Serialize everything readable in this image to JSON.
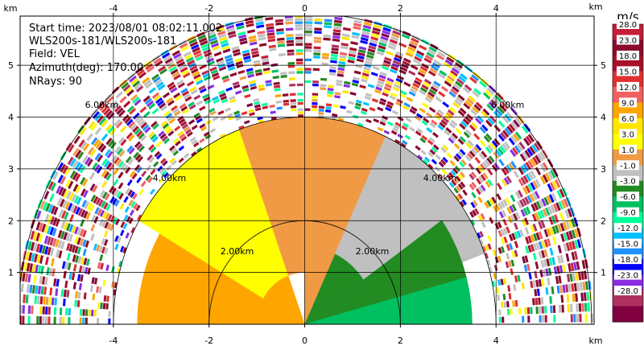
{
  "info": {
    "start_time": "Start time: 2023/08/01 08:02:11.002",
    "instrument": "WLS200s-181/WLS200s-181",
    "field": "Field: VEL",
    "azimuth": "Azimuth(deg): 170.00",
    "nrays": "NRays: 90"
  },
  "axis": {
    "unit": "km",
    "x_ticks": [
      -4,
      -2,
      0,
      2,
      4
    ],
    "y_ticks": [
      1,
      2,
      3,
      4,
      5
    ],
    "x_range": [
      -5.95,
      6.05
    ],
    "y_range": [
      0,
      5.95
    ]
  },
  "rings": [
    {
      "r": 2,
      "label": "2.00km"
    },
    {
      "r": 4,
      "label": "4.00km"
    },
    {
      "r": 6,
      "label": "6.00km"
    }
  ],
  "colorbar": {
    "unit": "m/s",
    "levels": [
      "28.0",
      "23.0",
      "18.0",
      "15.0",
      "12.0",
      "9.0",
      "6.0",
      "3.0",
      "1.0",
      "-1.0",
      "-3.0",
      "-6.0",
      "-9.0",
      "-12.0",
      "-15.0",
      "-18.0",
      "-23.0",
      "-28.0"
    ],
    "colors": [
      "#c41e3a",
      "#8b0a2a",
      "#a8102a",
      "#e03030",
      "#f06060",
      "#ffa500",
      "#ffe600",
      "#ffff00",
      "#f09a45",
      "#c0c0c0",
      "#228b22",
      "#00c060",
      "#00ff99",
      "#00bfff",
      "#1e90ff",
      "#0000ff",
      "#8a2be2",
      "#b03060",
      "#800040"
    ]
  },
  "chart_data": {
    "type": "heatmap",
    "title": "Start time: 2023/08/01 08:02:11.002",
    "xlabel": "km",
    "ylabel": "km",
    "field": "VEL",
    "units": "m/s",
    "xlim": [
      -5.95,
      6.05
    ],
    "ylim": [
      0,
      5.95
    ],
    "colorbar_range": [
      -28,
      28
    ],
    "approx_velocity_regions": [
      {
        "azimuth_deg": [
          270,
          300
        ],
        "range_km": [
          0,
          3.5
        ],
        "velocity_ms": 7
      },
      {
        "azimuth_deg": [
          300,
          340
        ],
        "range_km": [
          1,
          4.0
        ],
        "velocity_ms": 2
      },
      {
        "azimuth_deg": [
          340,
          360
        ],
        "range_km": [
          1,
          4.0
        ],
        "velocity_ms": 0
      },
      {
        "azimuth_deg": [
          0,
          25
        ],
        "range_km": [
          0,
          4.0
        ],
        "velocity_ms": 0
      },
      {
        "azimuth_deg": [
          25,
          70
        ],
        "range_km": [
          1.5,
          4.0
        ],
        "velocity_ms": -2
      },
      {
        "azimuth_deg": [
          55,
          75
        ],
        "range_km": [
          0,
          3.5
        ],
        "velocity_ms": -4
      },
      {
        "azimuth_deg": [
          75,
          90
        ],
        "range_km": [
          0,
          3.5
        ],
        "velocity_ms": -7
      },
      {
        "azimuth_deg": [
          0,
          360
        ],
        "range_km": [
          4.2,
          6.0
        ],
        "velocity_ms": "noise"
      }
    ]
  }
}
